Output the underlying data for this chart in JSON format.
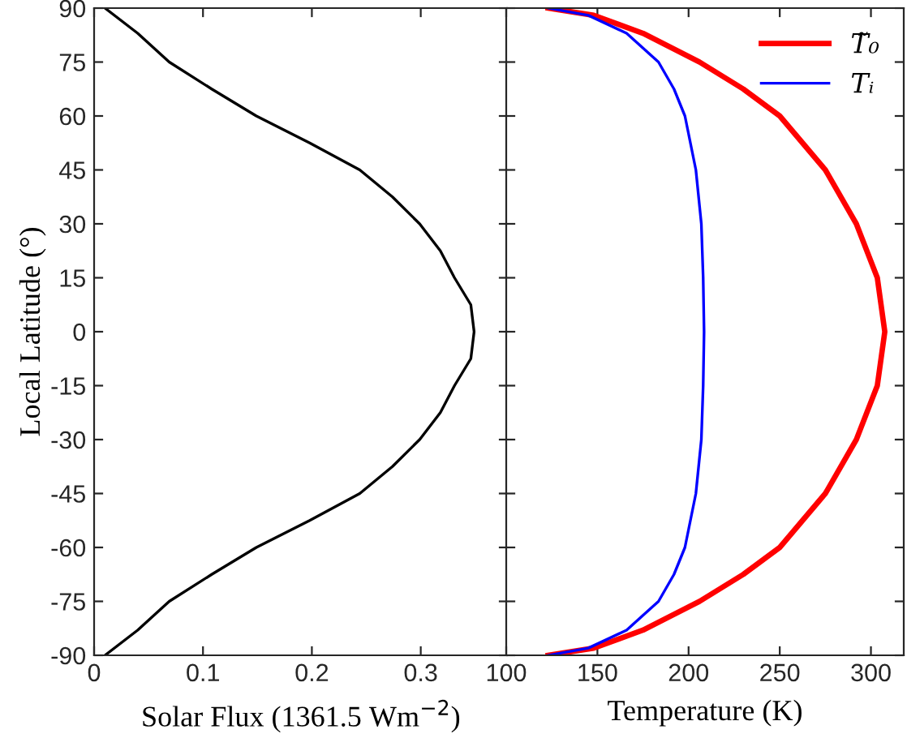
{
  "chart_data": [
    {
      "type": "line",
      "xlabel": "Solar Flux (1361.5 Wm$^{−2}$)",
      "ylabel": "Local Latitude (°)",
      "xlim": [
        0,
        0.38
      ],
      "xticks": [
        0,
        0.1,
        0.2,
        0.3
      ],
      "ylim": [
        -90,
        90
      ],
      "yticks": [
        -90,
        -75,
        -60,
        -45,
        -30,
        -15,
        0,
        15,
        30,
        45,
        60,
        75,
        90
      ],
      "grid": false,
      "legend": false,
      "series": [
        {
          "color": "#000000",
          "x": [
            0.01,
            0.04,
            0.069,
            0.108,
            0.149,
            0.198,
            0.244,
            0.274,
            0.299,
            0.318,
            0.331,
            0.346,
            0.349,
            0.346,
            0.331,
            0.318,
            0.299,
            0.274,
            0.244,
            0.198,
            0.149,
            0.108,
            0.069,
            0.04,
            0.01
          ],
          "values": [
            90,
            83,
            75,
            67.5,
            60,
            52.5,
            45,
            37.5,
            30,
            22.5,
            15,
            7.5,
            0,
            -7.5,
            -15,
            -22.5,
            -30,
            -37.5,
            -45,
            -52.5,
            -60,
            -67.5,
            -75,
            -83,
            -90
          ]
        }
      ]
    },
    {
      "type": "line",
      "xlabel": "Temperature (K)",
      "xlim": [
        100,
        318
      ],
      "xticks": [
        100,
        150,
        200,
        250,
        300
      ],
      "ylim": [
        -90,
        90
      ],
      "yticks": [
        -90,
        -75,
        -60,
        -45,
        -30,
        -15,
        0,
        15,
        30,
        45,
        60,
        75,
        90
      ],
      "tick_labels": "x",
      "grid": false,
      "legend": "top right",
      "series": [
        {
          "name": "T̃₀",
          "color": "#ff0000",
          "x": [
            123,
            148,
            175,
            206,
            230,
            250,
            275,
            292,
            303.5,
            307.6,
            303.5,
            292,
            275,
            250,
            230,
            206,
            175,
            148,
            123
          ],
          "values": [
            90,
            88,
            83,
            75,
            67.5,
            60,
            45,
            30,
            15,
            0,
            -15,
            -30,
            -45,
            -60,
            -67.5,
            -75,
            -83,
            -88,
            -90
          ]
        },
        {
          "name": "Tᵢ",
          "color": "#0000ff",
          "x": [
            123,
            145,
            166,
            183.5,
            192,
            198,
            204,
            207,
            208,
            208.5,
            208,
            207,
            204,
            198,
            192,
            183.5,
            166,
            145,
            123
          ],
          "values": [
            90,
            88,
            83,
            75,
            67.5,
            60,
            45,
            30,
            15,
            0,
            -15,
            -30,
            -45,
            -60,
            -67.5,
            -75,
            -83,
            -88,
            -90
          ]
        }
      ]
    }
  ]
}
